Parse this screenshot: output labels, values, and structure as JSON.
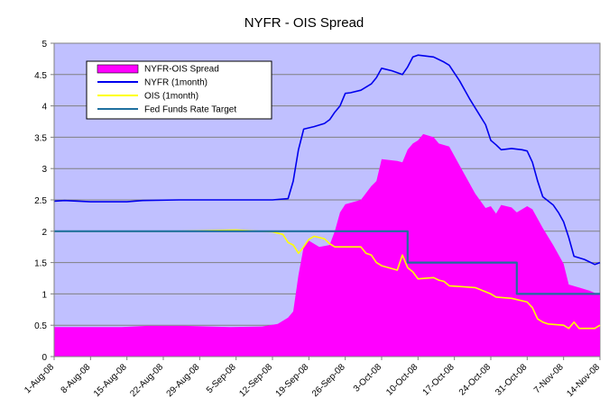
{
  "chart_data": {
    "type": "area",
    "title": "NYFR - OIS Spread",
    "xlabel": "",
    "ylabel": "",
    "ylim": [
      0,
      5
    ],
    "yticks": [
      "0",
      "0.5",
      "1",
      "1.5",
      "2",
      "2.5",
      "3",
      "3.5",
      "4",
      "4.5",
      "5"
    ],
    "x_start": "1-Aug-08",
    "x_end": "14-Nov-08",
    "xticks": [
      "1-Aug-08",
      "8-Aug-08",
      "15-Aug-08",
      "22-Aug-08",
      "29-Aug-08",
      "5-Sep-08",
      "12-Sep-08",
      "19-Sep-08",
      "26-Sep-08",
      "3-Oct-08",
      "10-Oct-08",
      "17-Oct-08",
      "24-Oct-08",
      "31-Oct-08",
      "7-Nov-08",
      "14-Nov-08"
    ],
    "grid": true,
    "legend_position": "top-left",
    "series": [
      {
        "name": "NYFR-OIS Spread",
        "kind": "area",
        "color": "#ff00ff",
        "points": [
          [
            "1-Aug-08",
            0.47
          ],
          [
            "14-Aug-08",
            0.47
          ],
          [
            "19-Aug-08",
            0.49
          ],
          [
            "26-Aug-08",
            0.49
          ],
          [
            "4-Sep-08",
            0.47
          ],
          [
            "10-Sep-08",
            0.48
          ],
          [
            "13-Sep-08",
            0.52
          ],
          [
            "15-Sep-08",
            0.62
          ],
          [
            "16-Sep-08",
            0.72
          ],
          [
            "17-Sep-08",
            1.3
          ],
          [
            "18-Sep-08",
            1.75
          ],
          [
            "19-Sep-08",
            1.85
          ],
          [
            "21-Sep-08",
            1.75
          ],
          [
            "23-Sep-08",
            1.78
          ],
          [
            "24-Sep-08",
            2.0
          ],
          [
            "25-Sep-08",
            2.3
          ],
          [
            "26-Sep-08",
            2.43
          ],
          [
            "29-Sep-08",
            2.5
          ],
          [
            "1-Oct-08",
            2.72
          ],
          [
            "2-Oct-08",
            2.8
          ],
          [
            "3-Oct-08",
            3.15
          ],
          [
            "6-Oct-08",
            3.12
          ],
          [
            "7-Oct-08",
            3.1
          ],
          [
            "8-Oct-08",
            3.3
          ],
          [
            "9-Oct-08",
            3.4
          ],
          [
            "10-Oct-08",
            3.45
          ],
          [
            "11-Oct-08",
            3.55
          ],
          [
            "13-Oct-08",
            3.5
          ],
          [
            "14-Oct-08",
            3.4
          ],
          [
            "16-Oct-08",
            3.35
          ],
          [
            "18-Oct-08",
            3.05
          ],
          [
            "21-Oct-08",
            2.6
          ],
          [
            "23-Oct-08",
            2.37
          ],
          [
            "24-Oct-08",
            2.4
          ],
          [
            "25-Oct-08",
            2.28
          ],
          [
            "26-Oct-08",
            2.42
          ],
          [
            "28-Oct-08",
            2.38
          ],
          [
            "29-Oct-08",
            2.3
          ],
          [
            "31-Oct-08",
            2.4
          ],
          [
            "1-Nov-08",
            2.35
          ],
          [
            "3-Nov-08",
            2.05
          ],
          [
            "5-Nov-08",
            1.78
          ],
          [
            "7-Nov-08",
            1.48
          ],
          [
            "8-Nov-08",
            1.15
          ],
          [
            "10-Nov-08",
            1.1
          ],
          [
            "12-Nov-08",
            1.05
          ],
          [
            "14-Nov-08",
            0.98
          ]
        ]
      },
      {
        "name": "NYFR (1month)",
        "kind": "line",
        "color": "#0000ee",
        "points": [
          [
            "1-Aug-08",
            2.48
          ],
          [
            "3-Aug-08",
            2.49
          ],
          [
            "8-Aug-08",
            2.47
          ],
          [
            "15-Aug-08",
            2.47
          ],
          [
            "18-Aug-08",
            2.49
          ],
          [
            "25-Aug-08",
            2.5
          ],
          [
            "5-Sep-08",
            2.5
          ],
          [
            "12-Sep-08",
            2.5
          ],
          [
            "15-Sep-08",
            2.52
          ],
          [
            "16-Sep-08",
            2.8
          ],
          [
            "17-Sep-08",
            3.3
          ],
          [
            "18-Sep-08",
            3.63
          ],
          [
            "20-Sep-08",
            3.67
          ],
          [
            "22-Sep-08",
            3.72
          ],
          [
            "23-Sep-08",
            3.78
          ],
          [
            "24-Sep-08",
            3.9
          ],
          [
            "25-Sep-08",
            4.0
          ],
          [
            "26-Sep-08",
            4.2
          ],
          [
            "27-Sep-08",
            4.21
          ],
          [
            "29-Sep-08",
            4.25
          ],
          [
            "1-Oct-08",
            4.35
          ],
          [
            "2-Oct-08",
            4.45
          ],
          [
            "3-Oct-08",
            4.6
          ],
          [
            "5-Oct-08",
            4.56
          ],
          [
            "7-Oct-08",
            4.5
          ],
          [
            "8-Oct-08",
            4.62
          ],
          [
            "9-Oct-08",
            4.78
          ],
          [
            "10-Oct-08",
            4.81
          ],
          [
            "13-Oct-08",
            4.78
          ],
          [
            "15-Oct-08",
            4.7
          ],
          [
            "16-Oct-08",
            4.65
          ],
          [
            "18-Oct-08",
            4.4
          ],
          [
            "20-Oct-08",
            4.1
          ],
          [
            "23-Oct-08",
            3.7
          ],
          [
            "24-Oct-08",
            3.45
          ],
          [
            "25-Oct-08",
            3.38
          ],
          [
            "26-Oct-08",
            3.3
          ],
          [
            "28-Oct-08",
            3.32
          ],
          [
            "30-Oct-08",
            3.3
          ],
          [
            "31-Oct-08",
            3.28
          ],
          [
            "1-Nov-08",
            3.1
          ],
          [
            "2-Nov-08",
            2.8
          ],
          [
            "3-Nov-08",
            2.55
          ],
          [
            "5-Nov-08",
            2.42
          ],
          [
            "6-Nov-08",
            2.3
          ],
          [
            "7-Nov-08",
            2.15
          ],
          [
            "8-Nov-08",
            1.9
          ],
          [
            "9-Nov-08",
            1.6
          ],
          [
            "11-Nov-08",
            1.55
          ],
          [
            "13-Nov-08",
            1.47
          ],
          [
            "14-Nov-08",
            1.5
          ]
        ]
      },
      {
        "name": "OIS (1month)",
        "kind": "line",
        "color": "#ffff00",
        "points": [
          [
            "1-Aug-08",
            2.0
          ],
          [
            "25-Aug-08",
            2.0
          ],
          [
            "5-Sep-08",
            2.02
          ],
          [
            "12-Sep-08",
            1.99
          ],
          [
            "14-Sep-08",
            1.95
          ],
          [
            "15-Sep-08",
            1.82
          ],
          [
            "16-Sep-08",
            1.78
          ],
          [
            "17-Sep-08",
            1.65
          ],
          [
            "18-Sep-08",
            1.75
          ],
          [
            "19-Sep-08",
            1.87
          ],
          [
            "20-Sep-08",
            1.92
          ],
          [
            "22-Sep-08",
            1.88
          ],
          [
            "23-Sep-08",
            1.8
          ],
          [
            "24-Sep-08",
            1.75
          ],
          [
            "29-Sep-08",
            1.75
          ],
          [
            "30-Sep-08",
            1.65
          ],
          [
            "1-Oct-08",
            1.62
          ],
          [
            "2-Oct-08",
            1.5
          ],
          [
            "3-Oct-08",
            1.45
          ],
          [
            "6-Oct-08",
            1.38
          ],
          [
            "7-Oct-08",
            1.62
          ],
          [
            "8-Oct-08",
            1.42
          ],
          [
            "9-Oct-08",
            1.35
          ],
          [
            "10-Oct-08",
            1.24
          ],
          [
            "13-Oct-08",
            1.26
          ],
          [
            "14-Oct-08",
            1.22
          ],
          [
            "15-Oct-08",
            1.2
          ],
          [
            "16-Oct-08",
            1.13
          ],
          [
            "21-Oct-08",
            1.1
          ],
          [
            "24-Oct-08",
            1.0
          ],
          [
            "25-Oct-08",
            0.95
          ],
          [
            "28-Oct-08",
            0.93
          ],
          [
            "31-Oct-08",
            0.87
          ],
          [
            "1-Nov-08",
            0.78
          ],
          [
            "2-Nov-08",
            0.6
          ],
          [
            "3-Nov-08",
            0.55
          ],
          [
            "4-Nov-08",
            0.52
          ],
          [
            "7-Nov-08",
            0.5
          ],
          [
            "8-Nov-08",
            0.45
          ],
          [
            "9-Nov-08",
            0.55
          ],
          [
            "10-Nov-08",
            0.45
          ],
          [
            "13-Nov-08",
            0.45
          ],
          [
            "14-Nov-08",
            0.5
          ]
        ]
      },
      {
        "name": "Fed Funds Rate Target",
        "kind": "step",
        "color": "#1f6f9f",
        "points": [
          [
            "1-Aug-08",
            2.0
          ],
          [
            "8-Oct-08",
            2.0
          ],
          [
            "8-Oct-08",
            1.5
          ],
          [
            "29-Oct-08",
            1.5
          ],
          [
            "29-Oct-08",
            1.0
          ],
          [
            "14-Nov-08",
            1.0
          ]
        ]
      }
    ]
  }
}
